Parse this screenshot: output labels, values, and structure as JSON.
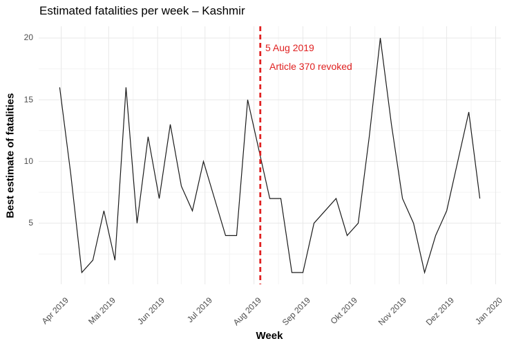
{
  "chart_data": {
    "type": "line",
    "title": "Estimated fatalities per week – Kashmir",
    "xlabel": "Week",
    "ylabel": "Best estimate of fatalities",
    "x_ticks": [
      {
        "date": "2019-04-01",
        "label": "Apr 2019"
      },
      {
        "date": "2019-05-01",
        "label": "Mai 2019"
      },
      {
        "date": "2019-06-01",
        "label": "Jun 2019"
      },
      {
        "date": "2019-07-01",
        "label": "Jul 2019"
      },
      {
        "date": "2019-08-01",
        "label": "Aug 2019"
      },
      {
        "date": "2019-09-01",
        "label": "Sep 2019"
      },
      {
        "date": "2019-10-01",
        "label": "Okt 2019"
      },
      {
        "date": "2019-11-01",
        "label": "Nov 2019"
      },
      {
        "date": "2019-12-01",
        "label": "Dez 2019"
      },
      {
        "date": "2020-01-01",
        "label": "Jan 2020"
      }
    ],
    "y_ticks": [
      5,
      10,
      15,
      20
    ],
    "y_minor_ticks": [
      2.5,
      7.5,
      12.5,
      17.5
    ],
    "ylim": [
      0.05,
      20.95
    ],
    "grid": true,
    "legend": "none",
    "series": [
      {
        "name": "Best estimate of fatalities",
        "weeks": [
          "2019-03-31",
          "2019-04-07",
          "2019-04-14",
          "2019-04-21",
          "2019-04-28",
          "2019-05-05",
          "2019-05-12",
          "2019-05-19",
          "2019-05-26",
          "2019-06-02",
          "2019-06-09",
          "2019-06-16",
          "2019-06-23",
          "2019-06-30",
          "2019-07-07",
          "2019-07-14",
          "2019-07-21",
          "2019-07-28",
          "2019-08-04",
          "2019-08-11",
          "2019-08-18",
          "2019-08-25",
          "2019-09-01",
          "2019-09-08",
          "2019-09-15",
          "2019-09-22",
          "2019-09-29",
          "2019-10-06",
          "2019-10-13",
          "2019-10-20",
          "2019-10-27",
          "2019-11-03",
          "2019-11-10",
          "2019-11-17",
          "2019-11-24",
          "2019-12-01",
          "2019-12-08",
          "2019-12-15",
          "2019-12-22"
        ],
        "values": [
          16,
          9,
          1,
          2,
          6,
          2,
          16,
          5,
          12,
          7,
          13,
          8,
          6,
          10,
          7,
          4,
          4,
          15,
          11,
          7,
          7,
          1,
          1,
          5,
          6,
          7,
          4,
          5,
          12,
          20,
          13,
          7,
          5,
          1,
          4,
          6,
          10,
          14,
          7
        ]
      }
    ],
    "annotation": {
      "vline_date": "2019-08-05",
      "line1": "5 Aug 2019",
      "line2": "Article 370 revoked",
      "color": "#e02020",
      "style": "dashed"
    },
    "colors": {
      "line": "#1a1a1a",
      "grid_major": "#e8e8e8",
      "grid_minor": "#f3f3f3",
      "tick_text": "#4d4d4d"
    }
  }
}
